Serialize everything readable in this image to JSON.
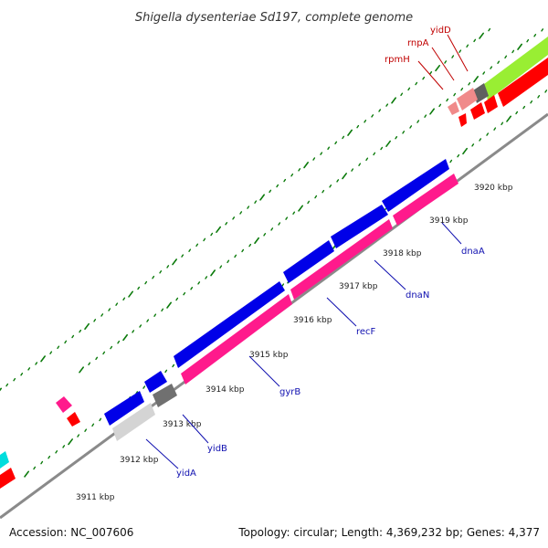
{
  "title": "Shigella dysenteriae Sd197, complete genome",
  "ticks": [
    "3911 kbp",
    "3912 kbp",
    "3913 kbp",
    "3914 kbp",
    "3915 kbp",
    "3916 kbp",
    "3917 kbp",
    "3918 kbp",
    "3919 kbp",
    "3920 kbp"
  ],
  "genes": {
    "blue": [
      "yidA",
      "yidB",
      "gyrB",
      "recF",
      "dnaN",
      "dnaA"
    ],
    "red": [
      "rpmH",
      "rnpA",
      "yidD"
    ]
  },
  "colors": {
    "forward_cds": "#0000e8",
    "reverse_cds": "#ff1a8c",
    "rna": "#ff0000",
    "other": "#606060",
    "pale": "#d0d0d0",
    "lime": "#99ee33",
    "salmon": "#f08a8a",
    "cyan": "#00dddd",
    "tick_mark": "#0a7a0a"
  },
  "footer": {
    "accession": "Accession: NC_007606",
    "summary": "Topology: circular; Length: 4,369,232 bp; Genes: 4,377"
  }
}
